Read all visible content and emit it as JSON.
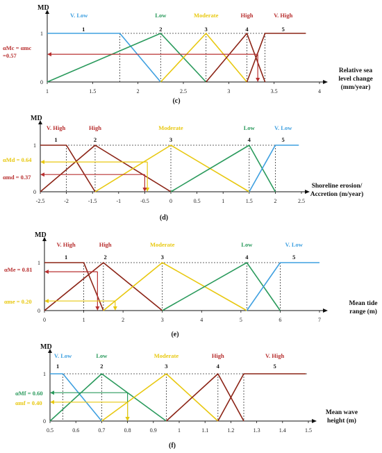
{
  "colors": {
    "v_low": "#3fa0e0",
    "low": "#2a9a5c",
    "moderate": "#e8c810",
    "high": "#8b2315",
    "v_high": "#8b2315",
    "label_v_low": "#3fa0e0",
    "label_low": "#2a9a5c",
    "label_moderate": "#e8c810",
    "label_high": "#b83030",
    "label_v_high": "#b83030",
    "alpha_red": "#b83030",
    "alpha_yellow": "#e8c810",
    "alpha_green": "#2a9a5c"
  },
  "chart_data": [
    {
      "type": "line",
      "panel_label": "(c)",
      "ylabel": "MD",
      "xlabel_lines": [
        "Relative sea",
        "level change",
        "(mm/year)"
      ],
      "xlim": [
        1,
        4
      ],
      "ylim": [
        0,
        1
      ],
      "xticks": [
        1,
        1.5,
        2,
        2.5,
        3,
        3.5,
        4
      ],
      "xtick_labels": [
        "1",
        "1.5",
        "2",
        "2.5",
        "3",
        "3.5",
        "4"
      ],
      "ytick_labels": [
        "0",
        "1"
      ],
      "dotted_top_to": 3.4,
      "dropdowns": [
        1.8,
        2.25,
        2.75,
        3.2,
        3.4
      ],
      "series": [
        {
          "name": "V. Low",
          "color_key": "v_low",
          "x": [
            1,
            1.8,
            2.25
          ],
          "y": [
            1,
            1,
            0
          ],
          "label_x": 1.35
        },
        {
          "name": "Low",
          "color_key": "low",
          "x": [
            1,
            2.25,
            2.75
          ],
          "y": [
            0,
            1,
            0
          ],
          "label_x": 2.25
        },
        {
          "name": "Moderate",
          "color_key": "moderate",
          "x": [
            2.25,
            2.75,
            3.2
          ],
          "y": [
            0,
            1,
            0
          ],
          "label_x": 2.75
        },
        {
          "name": "High",
          "color_key": "high",
          "x": [
            2.75,
            3.2,
            3.4
          ],
          "y": [
            0,
            1,
            0
          ],
          "label_x": 3.2
        },
        {
          "name": "V. High",
          "color_key": "v_high",
          "x": [
            3.2,
            3.4,
            3.85
          ],
          "y": [
            0,
            1,
            1
          ],
          "label_x": 3.6
        }
      ],
      "numbers": [
        {
          "text": "1",
          "x": 1.4
        },
        {
          "text": "2",
          "x": 2.25
        },
        {
          "text": "3",
          "x": 2.75
        },
        {
          "text": "4",
          "x": 3.2
        },
        {
          "text": "5",
          "x": 3.6
        }
      ],
      "alphas": [
        {
          "lines": [
            "αMc = αmc",
            "=0.57"
          ],
          "value": 0.57,
          "x_from": 3.32,
          "x_to": 3.32,
          "color_key": "alpha_red"
        }
      ]
    },
    {
      "type": "line",
      "panel_label": "(d)",
      "ylabel": "MD",
      "xlabel_lines": [
        "Shoreline erosion/",
        "Accretion (m/year)"
      ],
      "xlim": [
        -2.5,
        2.5
      ],
      "ylim": [
        0,
        1
      ],
      "xticks": [
        -2.5,
        -2,
        -1.5,
        -1,
        -0.5,
        0,
        0.5,
        1,
        1.5,
        2,
        2.5
      ],
      "xtick_labels": [
        "-2.5",
        "-2",
        "-1.5",
        "-1",
        "-0.5",
        "0",
        "0.5",
        "1",
        "1.5",
        "2",
        "2.5"
      ],
      "ytick_labels": [
        "0",
        "1"
      ],
      "dotted_top_to": 2.0,
      "dropdowns": [
        -2,
        -1.45,
        0,
        1.5,
        2
      ],
      "series": [
        {
          "name": "V. High",
          "color_key": "v_high",
          "x": [
            -2.5,
            -2,
            -1.45
          ],
          "y": [
            1,
            1,
            0
          ],
          "label_x": -2.2
        },
        {
          "name": "High",
          "color_key": "high",
          "x": [
            -2.5,
            -1.45,
            0
          ],
          "y": [
            0,
            1,
            0
          ],
          "label_x": -1.45
        },
        {
          "name": "Moderate",
          "color_key": "moderate",
          "x": [
            -1.45,
            0,
            1.5
          ],
          "y": [
            0,
            1,
            0
          ],
          "label_x": 0
        },
        {
          "name": "Low",
          "color_key": "low",
          "x": [
            0,
            1.5,
            2
          ],
          "y": [
            0,
            1,
            0
          ],
          "label_x": 1.5
        },
        {
          "name": "V. Low",
          "color_key": "v_low",
          "x": [
            1.5,
            2,
            2.45
          ],
          "y": [
            0,
            1,
            1
          ],
          "label_x": 2.15
        }
      ],
      "numbers": [
        {
          "text": "1",
          "x": -2.2
        },
        {
          "text": "2",
          "x": -1.45
        },
        {
          "text": "3",
          "x": 0
        },
        {
          "text": "4",
          "x": 1.5
        },
        {
          "text": "5",
          "x": 2.15
        }
      ],
      "alphas": [
        {
          "lines": [
            "αMd = 0.64"
          ],
          "value": 0.64,
          "x_from": -0.45,
          "x_to": -0.45,
          "color_key": "alpha_yellow"
        },
        {
          "lines": [
            "αmd = 0.37"
          ],
          "value": 0.37,
          "x_from": -0.5,
          "x_to": -0.5,
          "color_key": "alpha_red"
        }
      ]
    },
    {
      "type": "line",
      "panel_label": "(e)",
      "ylabel": "MD",
      "xlabel_lines": [
        "Mean tide",
        "range (m)"
      ],
      "xlim": [
        0,
        7
      ],
      "ylim": [
        0,
        1
      ],
      "xticks": [
        0,
        1,
        2,
        3,
        4,
        5,
        6,
        7
      ],
      "xtick_labels": [
        "0",
        "1",
        "2",
        "3",
        "4",
        "5",
        "6",
        "7"
      ],
      "ytick_labels": [
        "0",
        "1"
      ],
      "dotted_top_to": 6.0,
      "dropdowns": [
        1,
        1.5,
        3,
        5.15,
        6
      ],
      "series": [
        {
          "name": "V. High",
          "color_key": "v_high",
          "x": [
            0,
            1,
            1.5
          ],
          "y": [
            1,
            1,
            0
          ],
          "label_x": 0.55
        },
        {
          "name": "High",
          "color_key": "high",
          "x": [
            0,
            1.5,
            3
          ],
          "y": [
            0,
            1,
            0
          ],
          "label_x": 1.55
        },
        {
          "name": "Moderate",
          "color_key": "moderate",
          "x": [
            1.5,
            3,
            5.15
          ],
          "y": [
            0,
            1,
            0
          ],
          "label_x": 3
        },
        {
          "name": "Low",
          "color_key": "low",
          "x": [
            3,
            5.15,
            6
          ],
          "y": [
            0,
            1,
            0
          ],
          "label_x": 5.15
        },
        {
          "name": "V. Low",
          "color_key": "v_low",
          "x": [
            5.15,
            6,
            7
          ],
          "y": [
            0,
            1,
            1
          ],
          "label_x": 6.35
        }
      ],
      "numbers": [
        {
          "text": "1",
          "x": 0.55
        },
        {
          "text": "2",
          "x": 1.55
        },
        {
          "text": "3",
          "x": 3
        },
        {
          "text": "4",
          "x": 5.15
        },
        {
          "text": "5",
          "x": 6.35
        }
      ],
      "alphas": [
        {
          "lines": [
            "αMe = 0.81"
          ],
          "value": 0.81,
          "x_from": 1.35,
          "x_to": 1.35,
          "color_key": "alpha_red"
        },
        {
          "lines": [
            "αme = 0.20"
          ],
          "value": 0.2,
          "x_from": 1.8,
          "x_to": 1.8,
          "color_key": "alpha_yellow"
        }
      ]
    },
    {
      "type": "line",
      "panel_label": "(f)",
      "ylabel": "MD",
      "xlabel_lines": [
        "Mean wave",
        "height (m)"
      ],
      "xlim": [
        0.5,
        1.5
      ],
      "ylim": [
        0,
        1
      ],
      "xticks": [
        0.5,
        0.6,
        0.7,
        0.8,
        0.9,
        1,
        1.1,
        1.2,
        1.3,
        1.4,
        1.5
      ],
      "xtick_labels": [
        "0.5",
        "0.6",
        "0.7",
        "0.8",
        "0.9",
        "1",
        "1.1",
        "1.2",
        "1.3",
        "1.4",
        "1.5"
      ],
      "ytick_labels": [
        "0",
        "1"
      ],
      "dotted_top_to": 1.5,
      "dropdowns": [
        0.55,
        0.7,
        0.95,
        1.15,
        1.25
      ],
      "series": [
        {
          "name": "V. Low",
          "color_key": "v_low",
          "x": [
            0.5,
            0.55,
            0.7
          ],
          "y": [
            1,
            1,
            0
          ],
          "label_x": 0.55
        },
        {
          "name": "Low",
          "color_key": "low",
          "x": [
            0.5,
            0.7,
            0.95
          ],
          "y": [
            0,
            1,
            0
          ],
          "label_x": 0.7
        },
        {
          "name": "Moderate",
          "color_key": "moderate",
          "x": [
            0.7,
            0.95,
            1.15
          ],
          "y": [
            0,
            1,
            0
          ],
          "label_x": 0.95
        },
        {
          "name": "High",
          "color_key": "high",
          "x": [
            0.95,
            1.15,
            1.25
          ],
          "y": [
            0,
            1,
            0
          ],
          "label_x": 1.15
        },
        {
          "name": "V. High",
          "color_key": "v_high",
          "x": [
            1.15,
            1.25,
            1.49
          ],
          "y": [
            0,
            1,
            1
          ],
          "label_x": 1.37
        }
      ],
      "numbers": [
        {
          "text": "1",
          "x": 0.53
        },
        {
          "text": "2",
          "x": 0.7
        },
        {
          "text": "3",
          "x": 0.95
        },
        {
          "text": "4",
          "x": 1.15
        },
        {
          "text": "5",
          "x": 1.37
        }
      ],
      "alphas": [
        {
          "lines": [
            "αMf = 0.60"
          ],
          "value": 0.6,
          "x_from": 0.8,
          "x_to": 0.8,
          "color_key": "alpha_green"
        },
        {
          "lines": [
            "αmf = 0.40"
          ],
          "value": 0.4,
          "x_from": 0.8,
          "x_to": 0.8,
          "color_key": "alpha_yellow"
        }
      ]
    }
  ]
}
